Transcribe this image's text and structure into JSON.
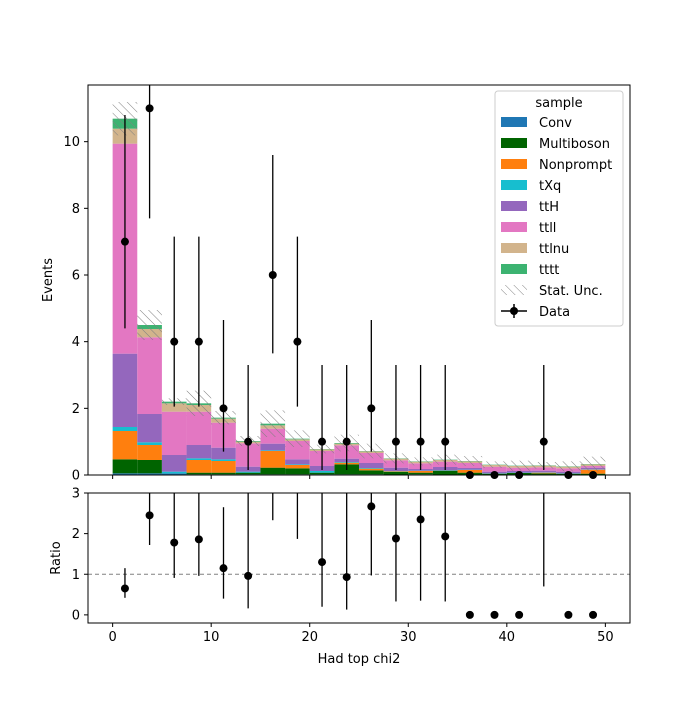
{
  "chart_data": [
    {
      "type": "stacked-histogram",
      "ylabel": "Events",
      "ylim": [
        0,
        11.7
      ],
      "xlim": [
        -2.5,
        52.5
      ],
      "yticks": [
        0,
        2,
        4,
        6,
        8,
        10
      ],
      "xticks": [
        0,
        10,
        20,
        30,
        40,
        50
      ],
      "legend": {
        "title": "sample",
        "position": "top-right",
        "stat_label": "Stat. Unc.",
        "data_label": "Data"
      },
      "bin_edges": [
        0,
        2.5,
        5,
        7.5,
        10,
        12.5,
        15,
        17.5,
        20,
        22.5,
        25,
        27.5,
        30,
        32.5,
        35,
        37.5,
        40,
        42.5,
        45,
        47.5,
        50
      ],
      "series": [
        {
          "name": "Conv",
          "color": "#1f77b4",
          "values": [
            0.05,
            0.05,
            0.05,
            0.02,
            0.02,
            0.02,
            0.02,
            0.02,
            0.02,
            0.02,
            0.02,
            0.01,
            0.02,
            0.01,
            0.01,
            0.01,
            0.01,
            0.01,
            0.01,
            0.01
          ]
        },
        {
          "name": "Multiboson",
          "color": "#006400",
          "values": [
            0.42,
            0.4,
            0.0,
            0.05,
            0.05,
            0.05,
            0.2,
            0.18,
            0.05,
            0.3,
            0.12,
            0.08,
            0.05,
            0.12,
            0.06,
            0.03,
            0.05,
            0.04,
            0.03,
            0.03
          ]
        },
        {
          "name": "Nonprompt",
          "color": "#ff7f0e",
          "values": [
            0.85,
            0.45,
            0.0,
            0.38,
            0.35,
            0.0,
            0.5,
            0.1,
            0.0,
            0.05,
            0.05,
            0.02,
            0.05,
            0.0,
            0.08,
            0.0,
            0.0,
            0.02,
            0.0,
            0.12
          ]
        },
        {
          "name": "tXq",
          "color": "#17becf",
          "values": [
            0.12,
            0.08,
            0.05,
            0.05,
            0.05,
            0.03,
            0.02,
            0.02,
            0.05,
            0.02,
            0.02,
            0.01,
            0.01,
            0.01,
            0.01,
            0.01,
            0.01,
            0.01,
            0.01,
            0.01
          ]
        },
        {
          "name": "ttH",
          "color": "#9467bd",
          "values": [
            2.2,
            0.85,
            0.5,
            0.4,
            0.35,
            0.15,
            0.2,
            0.15,
            0.15,
            0.1,
            0.15,
            0.1,
            0.05,
            0.1,
            0.05,
            0.05,
            0.05,
            0.05,
            0.05,
            0.05
          ]
        },
        {
          "name": "ttll",
          "color": "#e377c2",
          "values": [
            6.3,
            2.3,
            1.3,
            1.0,
            0.75,
            0.7,
            0.45,
            0.55,
            0.45,
            0.4,
            0.3,
            0.22,
            0.17,
            0.16,
            0.15,
            0.15,
            0.1,
            0.1,
            0.1,
            0.05
          ]
        },
        {
          "name": "ttlnu",
          "color": "#d2b48c",
          "values": [
            0.45,
            0.25,
            0.25,
            0.2,
            0.12,
            0.05,
            0.1,
            0.05,
            0.05,
            0.05,
            0.05,
            0.05,
            0.05,
            0.05,
            0.05,
            0.05,
            0.05,
            0.05,
            0.05,
            0.05
          ]
        },
        {
          "name": "tttt",
          "color": "#3cb371",
          "values": [
            0.3,
            0.12,
            0.05,
            0.05,
            0.03,
            0.02,
            0.05,
            0.02,
            0.01,
            0.02,
            0.01,
            0.01,
            0.01,
            0.01,
            0.01,
            0.01,
            0.01,
            0.01,
            0.01,
            0.01
          ]
        }
      ],
      "stat_unc": [
        0.5,
        0.45,
        0.1,
        0.38,
        0.2,
        0.15,
        0.4,
        0.25,
        0.13,
        0.25,
        0.22,
        0.15,
        0.12,
        0.15,
        0.15,
        0.1,
        0.15,
        0.1,
        0.15,
        0.22
      ],
      "data": {
        "x": [
          1.25,
          3.75,
          6.25,
          8.75,
          11.25,
          13.75,
          16.25,
          18.75,
          21.25,
          23.75,
          26.25,
          28.75,
          31.25,
          33.75,
          36.25,
          38.75,
          41.25,
          43.75,
          46.25,
          48.75
        ],
        "y": [
          7,
          11,
          4,
          4,
          2,
          1,
          6,
          4,
          1,
          1,
          2,
          1,
          1,
          1,
          0,
          0,
          0,
          1,
          0,
          0
        ],
        "err_low": [
          2.6,
          3.3,
          1.95,
          1.95,
          1.3,
          0.85,
          2.35,
          1.95,
          0.85,
          0.85,
          1.3,
          0.85,
          0.85,
          0.85,
          0,
          0,
          0,
          0.85,
          0,
          0
        ],
        "err_high": [
          3.8,
          4.4,
          3.15,
          3.15,
          2.65,
          2.3,
          3.6,
          3.15,
          2.3,
          2.3,
          2.65,
          2.3,
          2.3,
          2.3,
          0,
          0,
          0,
          2.3,
          0,
          0
        ]
      }
    },
    {
      "type": "scatter",
      "xlabel": "Had top chi2",
      "ylabel": "Ratio",
      "ylim": [
        -0.2,
        3.0
      ],
      "xlim": [
        -2.5,
        52.5
      ],
      "yticks": [
        0,
        1,
        2,
        3
      ],
      "xticks": [
        0,
        10,
        20,
        30,
        40,
        50
      ],
      "reference_line": 1,
      "x": [
        1.25,
        3.75,
        6.25,
        8.75,
        11.25,
        13.75,
        16.25,
        18.75,
        21.25,
        23.75,
        26.25,
        28.75,
        31.25,
        33.75,
        36.25,
        38.75,
        41.25,
        43.75,
        46.25,
        48.75
      ],
      "y": [
        0.65,
        2.45,
        1.78,
        1.86,
        1.15,
        0.96,
        null,
        null,
        1.3,
        0.93,
        2.67,
        1.88,
        2.35,
        1.93,
        0,
        0,
        0,
        null,
        0,
        0
      ],
      "err_low": [
        0.23,
        0.73,
        0.87,
        0.9,
        0.75,
        0.8,
        0,
        0,
        1.1,
        0.8,
        1.7,
        1.55,
        2.0,
        1.6,
        0,
        0,
        0,
        0,
        0,
        0
      ],
      "err_high": [
        0.5,
        0.55,
        1.22,
        1.14,
        1.5,
        2.2,
        0,
        0,
        1.7,
        2.2,
        0.33,
        1.12,
        0.65,
        1.07,
        0,
        0,
        0,
        0,
        0,
        0
      ],
      "offscale_segments": [
        {
          "x": 16.25,
          "ylow": 2.33,
          "yhigh": 3.0
        },
        {
          "x": 18.75,
          "ylow": 1.87,
          "yhigh": 3.0
        },
        {
          "x": 43.75,
          "ylow": 0.7,
          "yhigh": 3.0
        }
      ]
    }
  ]
}
